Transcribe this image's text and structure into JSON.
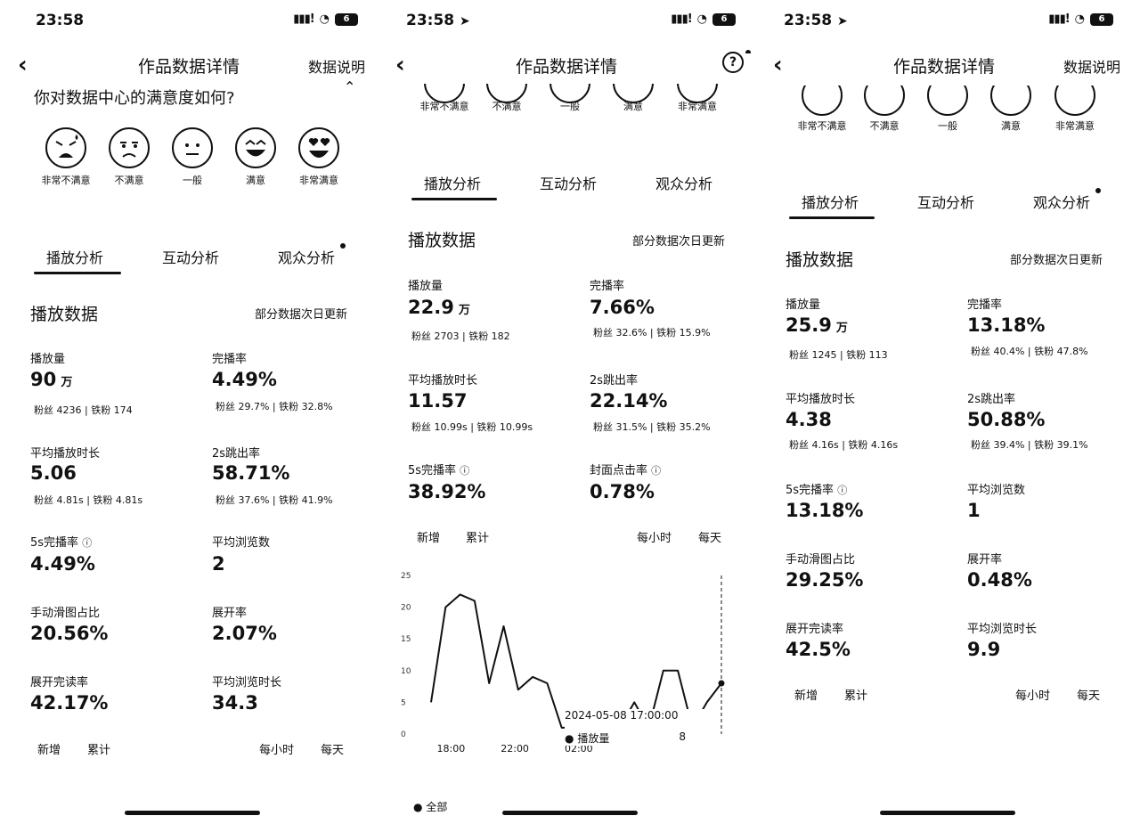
{
  "status": {
    "time": "23:58",
    "battery": "6"
  },
  "nav": {
    "title": "作品数据详情",
    "help_label": "数据说明"
  },
  "survey": {
    "question": "你对数据中心的满意度如何?",
    "options": [
      "非常不满意",
      "不满意",
      "一般",
      "满意",
      "非常满意"
    ]
  },
  "tabs": [
    "播放分析",
    "互动分析",
    "观众分析"
  ],
  "section": {
    "title": "播放数据",
    "note": "部分数据次日更新"
  },
  "toggles": {
    "new": "新增",
    "cumulative": "累计",
    "hourly": "每小时",
    "daily": "每天"
  },
  "panel1": {
    "metrics": [
      {
        "label": "播放量",
        "value": "90",
        "unit": "万",
        "sub": "粉丝 4236 | 铁粉 174"
      },
      {
        "label": "完播率",
        "value": "4.49%",
        "sub": "粉丝 29.7% | 铁粉 32.8%"
      },
      {
        "label": "平均播放时长",
        "value": "5.06",
        "sub": "粉丝 4.81s | 铁粉 4.81s"
      },
      {
        "label": "2s跳出率",
        "value": "58.71%",
        "sub": "粉丝 37.6% | 铁粉 41.9%"
      },
      {
        "label": "5s完播率",
        "value": "4.49%"
      },
      {
        "label": "平均浏览数",
        "value": "2"
      },
      {
        "label": "手动滑图占比",
        "value": "20.56%"
      },
      {
        "label": "展开率",
        "value": "2.07%"
      },
      {
        "label": "展开完读率",
        "value": "42.17%"
      },
      {
        "label": "平均浏览时长",
        "value": "34.3"
      }
    ]
  },
  "panel2": {
    "metrics": [
      {
        "label": "播放量",
        "value": "22.9",
        "unit": "万",
        "sub": "粉丝 2703 | 铁粉 182"
      },
      {
        "label": "完播率",
        "value": "7.66%",
        "sub": "粉丝 32.6% | 铁粉 15.9%"
      },
      {
        "label": "平均播放时长",
        "value": "11.57",
        "sub": "粉丝 10.99s | 铁粉 10.99s"
      },
      {
        "label": "2s跳出率",
        "value": "22.14%",
        "sub": "粉丝 31.5% | 铁粉 35.2%"
      },
      {
        "label": "5s完播率",
        "value": "38.92%"
      },
      {
        "label": "封面点击率",
        "value": "0.78%"
      }
    ],
    "tooltip": {
      "date": "2024-05-08 17:00:00",
      "series": "播放量",
      "value": "8"
    },
    "legend": "全部"
  },
  "panel3": {
    "metrics": [
      {
        "label": "播放量",
        "value": "25.9",
        "unit": "万",
        "sub": "粉丝 1245 | 铁粉 113"
      },
      {
        "label": "完播率",
        "value": "13.18%",
        "sub": "粉丝 40.4% | 铁粉 47.8%"
      },
      {
        "label": "平均播放时长",
        "value": "4.38",
        "sub": "粉丝 4.16s | 铁粉 4.16s"
      },
      {
        "label": "2s跳出率",
        "value": "50.88%",
        "sub": "粉丝 39.4% | 铁粉 39.1%"
      },
      {
        "label": "5s完播率",
        "value": "13.18%"
      },
      {
        "label": "平均浏览数",
        "value": "1"
      },
      {
        "label": "手动滑图占比",
        "value": "29.25%"
      },
      {
        "label": "展开率",
        "value": "0.48%"
      },
      {
        "label": "展开完读率",
        "value": "42.5%"
      },
      {
        "label": "平均浏览时长",
        "value": "9.9"
      }
    ]
  },
  "chart_data": {
    "type": "line",
    "x_ticks": [
      "18:00",
      "22:00",
      "02:00"
    ],
    "yticks": [
      0,
      5,
      10,
      15,
      20,
      25
    ],
    "ylim": [
      0,
      25
    ],
    "series": [
      {
        "name": "播放量",
        "values": [
          5,
          20,
          22,
          21,
          8,
          17,
          7,
          9,
          8,
          1,
          1,
          1,
          1,
          1,
          5,
          1,
          10,
          10,
          1,
          5,
          8
        ]
      }
    ]
  }
}
